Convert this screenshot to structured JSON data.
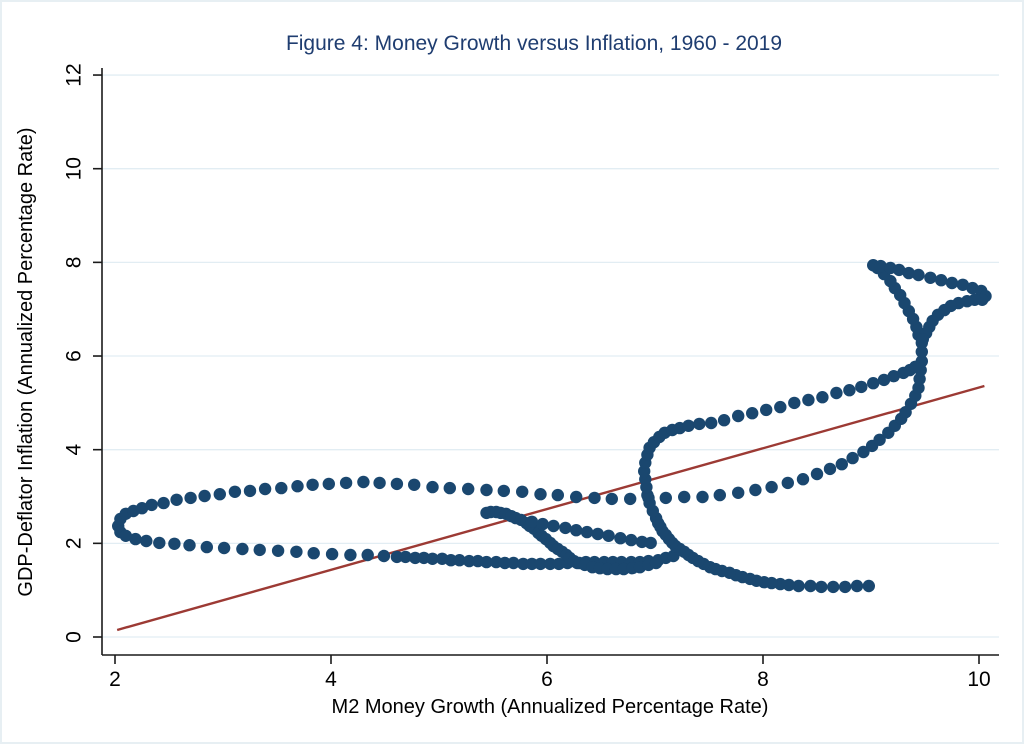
{
  "figure": {
    "background": "#ffffff",
    "border_color": "#e7eff3"
  },
  "chart_data": {
    "type": "scatter",
    "title": "Figure 4: Money Growth versus Inflation, 1960 - 2019",
    "xlabel": "M2 Money Growth (Annualized Percentage Rate)",
    "ylabel": "GDP-Deflator Inflation (Annualized Percentage Rate)",
    "xlim": [
      1.88,
      10.25
    ],
    "ylim": [
      -0.38,
      12.1
    ],
    "xticks": [
      2,
      4,
      6,
      8,
      10
    ],
    "yticks": [
      0,
      2,
      4,
      6,
      8,
      10,
      12
    ],
    "grid": "horizontal-only",
    "legend": "none",
    "colors": {
      "points": "#1a476f",
      "trend_line": "#9c3a34",
      "gridline": "#e2edf3",
      "axis": "#1a1a1a",
      "title": "#1f3d70",
      "text": "#000000"
    },
    "point_radius_px": 6.2,
    "trend_line": {
      "x1": 2.02,
      "y1": 0.15,
      "x2": 10.05,
      "y2": 5.36
    },
    "series": [
      {
        "name": "rolling-average-path",
        "marker": "circle",
        "segments": [
          [
            [
              2.03,
              2.37
            ],
            [
              2.05,
              2.52
            ],
            [
              2.1,
              2.63
            ],
            [
              2.17,
              2.69
            ],
            [
              2.25,
              2.75
            ],
            [
              2.34,
              2.82
            ],
            [
              2.45,
              2.86
            ],
            [
              2.57,
              2.93
            ],
            [
              2.7,
              2.97
            ],
            [
              2.83,
              3.01
            ],
            [
              2.97,
              3.05
            ],
            [
              3.11,
              3.1
            ],
            [
              3.25,
              3.12
            ],
            [
              3.39,
              3.16
            ],
            [
              3.54,
              3.18
            ],
            [
              3.69,
              3.22
            ],
            [
              3.83,
              3.25
            ],
            [
              3.98,
              3.27
            ],
            [
              4.14,
              3.29
            ],
            [
              4.3,
              3.31
            ],
            [
              4.45,
              3.29
            ],
            [
              4.61,
              3.27
            ],
            [
              4.77,
              3.25
            ],
            [
              4.94,
              3.2
            ],
            [
              5.1,
              3.18
            ],
            [
              5.27,
              3.16
            ],
            [
              5.44,
              3.14
            ],
            [
              5.6,
              3.12
            ],
            [
              5.77,
              3.1
            ],
            [
              5.94,
              3.05
            ],
            [
              6.1,
              3.03
            ],
            [
              6.27,
              2.99
            ],
            [
              6.44,
              2.97
            ],
            [
              6.6,
              2.95
            ],
            [
              6.77,
              2.95
            ],
            [
              6.94,
              2.97
            ],
            [
              7.1,
              2.97
            ],
            [
              7.27,
              2.99
            ],
            [
              7.44,
              2.99
            ],
            [
              7.6,
              3.03
            ],
            [
              7.77,
              3.08
            ],
            [
              7.93,
              3.14
            ],
            [
              8.08,
              3.2
            ],
            [
              8.23,
              3.29
            ],
            [
              8.37,
              3.37
            ],
            [
              8.5,
              3.48
            ],
            [
              8.62,
              3.59
            ],
            [
              8.73,
              3.69
            ],
            [
              8.83,
              3.82
            ],
            [
              8.93,
              3.95
            ],
            [
              9.01,
              4.08
            ],
            [
              9.08,
              4.21
            ],
            [
              9.16,
              4.36
            ],
            [
              9.22,
              4.51
            ],
            [
              9.28,
              4.66
            ],
            [
              9.32,
              4.8
            ],
            [
              9.37,
              4.98
            ],
            [
              9.41,
              5.15
            ],
            [
              9.44,
              5.32
            ],
            [
              9.45,
              5.51
            ],
            [
              9.46,
              5.7
            ],
            [
              9.47,
              5.89
            ],
            [
              9.47,
              6.09
            ],
            [
              9.47,
              6.28
            ],
            [
              9.44,
              6.45
            ],
            [
              9.42,
              6.62
            ],
            [
              9.39,
              6.79
            ],
            [
              9.35,
              6.96
            ],
            [
              9.31,
              7.13
            ],
            [
              9.27,
              7.3
            ],
            [
              9.22,
              7.45
            ],
            [
              9.18,
              7.6
            ],
            [
              9.12,
              7.75
            ],
            [
              9.06,
              7.88
            ],
            [
              9.02,
              7.94
            ],
            [
              9.09,
              7.92
            ],
            [
              9.18,
              7.88
            ],
            [
              9.26,
              7.84
            ],
            [
              9.35,
              7.77
            ],
            [
              9.44,
              7.73
            ],
            [
              9.55,
              7.67
            ],
            [
              9.65,
              7.62
            ],
            [
              9.75,
              7.56
            ],
            [
              9.85,
              7.52
            ],
            [
              9.94,
              7.45
            ],
            [
              10.02,
              7.39
            ],
            [
              10.06,
              7.28
            ],
            [
              10.03,
              7.2
            ],
            [
              9.96,
              7.2
            ],
            [
              9.89,
              7.17
            ],
            [
              9.81,
              7.13
            ],
            [
              9.74,
              7.07
            ],
            [
              9.68,
              6.98
            ],
            [
              9.62,
              6.88
            ],
            [
              9.57,
              6.75
            ],
            [
              9.54,
              6.62
            ],
            [
              9.51,
              6.49
            ],
            [
              9.48,
              6.36
            ]
          ],
          [
            [
              2.05,
              2.24
            ],
            [
              2.1,
              2.16
            ],
            [
              2.19,
              2.09
            ],
            [
              2.29,
              2.05
            ],
            [
              2.41,
              2.01
            ],
            [
              2.55,
              1.99
            ],
            [
              2.69,
              1.96
            ],
            [
              2.85,
              1.92
            ],
            [
              3.01,
              1.9
            ],
            [
              3.18,
              1.88
            ],
            [
              3.34,
              1.86
            ],
            [
              3.51,
              1.84
            ],
            [
              3.68,
              1.82
            ],
            [
              3.84,
              1.79
            ],
            [
              4.01,
              1.77
            ],
            [
              4.18,
              1.75
            ],
            [
              4.34,
              1.75
            ],
            [
              4.49,
              1.73
            ],
            [
              4.61,
              1.71
            ],
            [
              4.69,
              1.71
            ],
            [
              4.78,
              1.69
            ],
            [
              4.86,
              1.69
            ],
            [
              4.94,
              1.67
            ],
            [
              5.03,
              1.67
            ],
            [
              5.11,
              1.64
            ],
            [
              5.19,
              1.64
            ],
            [
              5.28,
              1.62
            ],
            [
              5.36,
              1.62
            ],
            [
              5.44,
              1.6
            ],
            [
              5.53,
              1.6
            ],
            [
              5.61,
              1.58
            ],
            [
              5.69,
              1.58
            ],
            [
              5.78,
              1.56
            ],
            [
              5.86,
              1.56
            ],
            [
              5.94,
              1.56
            ],
            [
              6.03,
              1.56
            ],
            [
              6.11,
              1.56
            ],
            [
              6.19,
              1.58
            ],
            [
              6.28,
              1.58
            ],
            [
              6.36,
              1.6
            ],
            [
              6.44,
              1.6
            ],
            [
              6.53,
              1.6
            ],
            [
              6.61,
              1.6
            ],
            [
              6.69,
              1.6
            ],
            [
              6.78,
              1.6
            ],
            [
              6.86,
              1.6
            ],
            [
              6.94,
              1.62
            ],
            [
              7.03,
              1.64
            ],
            [
              7.1,
              1.69
            ],
            [
              7.17,
              1.73
            ]
          ],
          [
            [
              5.44,
              2.65
            ],
            [
              5.48,
              2.67
            ],
            [
              5.53,
              2.67
            ],
            [
              5.57,
              2.65
            ],
            [
              5.62,
              2.63
            ],
            [
              5.67,
              2.58
            ],
            [
              5.71,
              2.54
            ],
            [
              5.76,
              2.5
            ],
            [
              5.81,
              2.43
            ],
            [
              5.84,
              2.37
            ],
            [
              5.88,
              2.31
            ],
            [
              5.92,
              2.22
            ],
            [
              5.95,
              2.16
            ],
            [
              5.99,
              2.09
            ],
            [
              6.03,
              2.01
            ],
            [
              6.06,
              1.94
            ],
            [
              6.1,
              1.88
            ],
            [
              6.14,
              1.82
            ],
            [
              6.18,
              1.75
            ],
            [
              6.21,
              1.69
            ],
            [
              6.25,
              1.62
            ],
            [
              6.3,
              1.58
            ],
            [
              6.35,
              1.54
            ],
            [
              6.42,
              1.49
            ],
            [
              6.49,
              1.47
            ],
            [
              6.56,
              1.45
            ],
            [
              6.64,
              1.45
            ],
            [
              6.71,
              1.45
            ],
            [
              6.79,
              1.47
            ],
            [
              6.86,
              1.49
            ],
            [
              6.94,
              1.54
            ],
            [
              7.01,
              1.58
            ]
          ],
          [
            [
              5.86,
              2.46
            ],
            [
              5.96,
              2.41
            ],
            [
              6.06,
              2.37
            ],
            [
              6.17,
              2.33
            ],
            [
              6.27,
              2.28
            ],
            [
              6.37,
              2.24
            ],
            [
              6.47,
              2.2
            ],
            [
              6.57,
              2.16
            ],
            [
              6.68,
              2.11
            ],
            [
              6.78,
              2.07
            ],
            [
              6.88,
              2.03
            ],
            [
              6.96,
              2.01
            ]
          ],
          [
            [
              8.98,
              1.09
            ],
            [
              8.87,
              1.09
            ],
            [
              8.76,
              1.07
            ],
            [
              8.65,
              1.07
            ],
            [
              8.54,
              1.07
            ],
            [
              8.44,
              1.09
            ],
            [
              8.33,
              1.09
            ],
            [
              8.24,
              1.11
            ],
            [
              8.16,
              1.13
            ],
            [
              8.08,
              1.15
            ],
            [
              8.01,
              1.17
            ],
            [
              7.94,
              1.2
            ],
            [
              7.88,
              1.24
            ],
            [
              7.81,
              1.28
            ],
            [
              7.75,
              1.32
            ],
            [
              7.69,
              1.37
            ],
            [
              7.62,
              1.41
            ],
            [
              7.56,
              1.45
            ],
            [
              7.51,
              1.49
            ],
            [
              7.45,
              1.56
            ],
            [
              7.4,
              1.62
            ],
            [
              7.35,
              1.69
            ],
            [
              7.31,
              1.75
            ],
            [
              7.27,
              1.82
            ],
            [
              7.23,
              1.88
            ],
            [
              7.19,
              1.94
            ],
            [
              7.16,
              2.01
            ],
            [
              7.13,
              2.09
            ],
            [
              7.1,
              2.18
            ],
            [
              7.07,
              2.26
            ],
            [
              7.05,
              2.35
            ],
            [
              7.03,
              2.43
            ],
            [
              7.01,
              2.54
            ],
            [
              6.98,
              2.69
            ],
            [
              6.95,
              2.86
            ],
            [
              6.93,
              3.03
            ],
            [
              6.92,
              3.2
            ],
            [
              6.91,
              3.37
            ],
            [
              6.9,
              3.54
            ],
            [
              6.91,
              3.72
            ],
            [
              6.93,
              3.89
            ],
            [
              6.95,
              4.04
            ],
            [
              6.99,
              4.16
            ],
            [
              7.04,
              4.27
            ],
            [
              7.09,
              4.36
            ],
            [
              7.16,
              4.42
            ],
            [
              7.23,
              4.46
            ],
            [
              7.31,
              4.51
            ],
            [
              7.41,
              4.55
            ],
            [
              7.52,
              4.57
            ],
            [
              7.64,
              4.63
            ],
            [
              7.77,
              4.72
            ],
            [
              7.9,
              4.78
            ],
            [
              8.03,
              4.85
            ],
            [
              8.16,
              4.91
            ],
            [
              8.29,
              5.0
            ],
            [
              8.42,
              5.06
            ],
            [
              8.55,
              5.12
            ],
            [
              8.68,
              5.21
            ],
            [
              8.8,
              5.27
            ],
            [
              8.91,
              5.34
            ],
            [
              9.02,
              5.42
            ],
            [
              9.12,
              5.49
            ],
            [
              9.21,
              5.57
            ],
            [
              9.3,
              5.64
            ],
            [
              9.36,
              5.7
            ],
            [
              9.41,
              5.77
            ]
          ]
        ]
      }
    ]
  }
}
